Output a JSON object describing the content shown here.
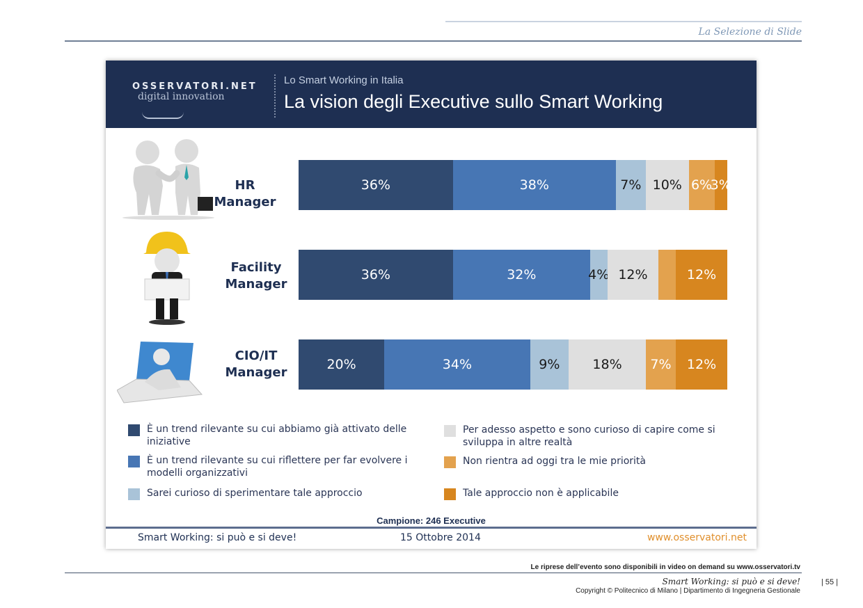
{
  "page": {
    "section_title": "La Selezione di Slide",
    "video_note": "Le riprese dell’evento sono disponibili in video on demand su www.osservatori.tv",
    "footer_title": "Smart Working: si può e si deve!",
    "copyright": "Copyright © Politecnico di Milano | Dipartimento di Ingegneria Gestionale",
    "page_number": "| 55 |"
  },
  "slide": {
    "logo": {
      "top": "OSSERVATORI.NET",
      "bottom": "digital innovation"
    },
    "subtitle": "Lo Smart Working in Italia",
    "title": "La vision degli Executive sullo Smart Working",
    "sample": "Campione: 246 Executive",
    "footer": {
      "left": "Smart Working: si può e si deve!",
      "center": "15 Ottobre 2014",
      "right": "www.osservatori.net"
    }
  },
  "chart_data": {
    "type": "bar",
    "orientation": "horizontal",
    "stacked": true,
    "percent_stacked": true,
    "title": "La vision degli Executive sullo Smart Working",
    "categories": [
      "HR Manager",
      "Facility Manager",
      "CIO/IT Manager"
    ],
    "category_icons": [
      "handshake-figures",
      "hardhat-figure",
      "laptop-figure"
    ],
    "xlim": [
      0,
      100
    ],
    "grid": false,
    "legend_position": "bottom",
    "series": [
      {
        "name": "È un trend rilevante su cui abbiamo già attivato delle iniziative",
        "color": "#304a70",
        "label_color": "#ffffff",
        "values": [
          36,
          36,
          20
        ],
        "labels": [
          "36%",
          "36%",
          "20%"
        ]
      },
      {
        "name": "È un trend rilevante su cui riflettere per far evolvere i modelli organizzativi",
        "color": "#4776b4",
        "label_color": "#ffffff",
        "values": [
          38,
          32,
          34
        ],
        "labels": [
          "38%",
          "32%",
          "34%"
        ]
      },
      {
        "name": "Sarei curioso di sperimentare tale approccio",
        "color": "#a9c3d8",
        "label_color": "#1a1a1a",
        "values": [
          7,
          4,
          9
        ],
        "labels": [
          "7%",
          "4%",
          "9%"
        ]
      },
      {
        "name": "Per adesso aspetto e sono curioso di capire come si sviluppa in altre realtà",
        "color": "#dfdfdf",
        "label_color": "#1a1a1a",
        "values": [
          10,
          12,
          18
        ],
        "labels": [
          "10%",
          "12%",
          "18%"
        ]
      },
      {
        "name": "Non rientra ad oggi tra le mie priorità",
        "color": "#e3a24e",
        "label_color": "#ffffff",
        "values": [
          6,
          4,
          7
        ],
        "labels": [
          "6%",
          "",
          "7%"
        ]
      },
      {
        "name": "Tale approccio non è applicabile",
        "color": "#d7861f",
        "label_color": "#ffffff",
        "values": [
          3,
          12,
          12
        ],
        "labels": [
          "3%",
          "12%",
          "12%"
        ]
      }
    ]
  }
}
